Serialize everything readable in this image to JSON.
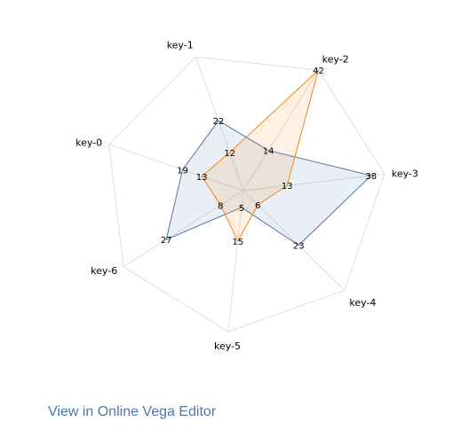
{
  "chart_data": {
    "type": "radar",
    "categories": [
      "key-0",
      "key-1",
      "key-2",
      "key-3",
      "key-4",
      "key-5",
      "key-6"
    ],
    "series": [
      {
        "values": [
          19,
          22,
          14,
          38,
          23,
          5,
          27
        ],
        "color": "#4c78a8",
        "fill": "#4c78a8"
      },
      {
        "values": [
          13,
          12,
          42,
          13,
          6,
          15,
          8
        ],
        "color": "#f58518",
        "fill": "#f58518"
      }
    ],
    "max": 42,
    "grid_color": "#dddddd",
    "grid": true,
    "legend": "none"
  },
  "footer": {
    "link_label": "View in Online Vega Editor"
  }
}
